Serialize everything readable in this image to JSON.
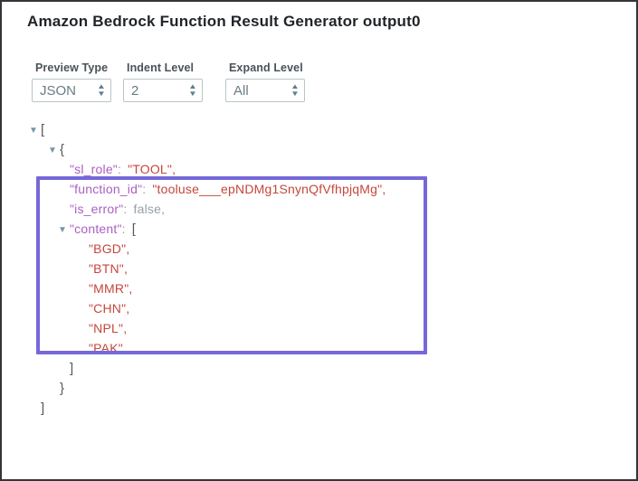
{
  "title": "Amazon Bedrock Function Result Generator output0",
  "controls": [
    {
      "id": "preview-type",
      "label": "Preview Type",
      "value": "JSON"
    },
    {
      "id": "indent-level",
      "label": "Indent Level",
      "value": "2"
    },
    {
      "id": "expand-level",
      "label": "Expand Level",
      "value": "All"
    }
  ],
  "stepper_icons": {
    "up": "▲",
    "down": "▼"
  },
  "colors": {
    "key": "#ab5fc3",
    "string": "#c5463c",
    "punct": "#97a0a5",
    "bracket": "#55595c",
    "toggle": "#7495a6",
    "arrow": "#5e7d8d",
    "selection": "#7568d8"
  },
  "json_tree": {
    "toggle_icon": "▼",
    "lines": [
      {
        "indent": 0,
        "tokens": [
          {
            "type": "toggle",
            "text": "▼"
          },
          {
            "type": "bracket",
            "text": "["
          }
        ]
      },
      {
        "indent": 1,
        "tokens": [
          {
            "type": "toggle",
            "text": "▼"
          },
          {
            "type": "bracket",
            "text": "{"
          }
        ]
      },
      {
        "indent": 2,
        "tokens": [
          {
            "type": "key",
            "text": "\"sl_role\""
          },
          {
            "type": "colon",
            "text": ":"
          },
          {
            "type": "string",
            "text": "\"TOOL\""
          },
          {
            "type": "comma-s",
            "text": ","
          }
        ]
      },
      {
        "indent": 2,
        "tokens": [
          {
            "type": "key",
            "text": "\"function_id\""
          },
          {
            "type": "colon",
            "text": ":"
          },
          {
            "type": "string",
            "text": "\"tooluse___epNDMg1SnynQfVfhpjqMg\""
          },
          {
            "type": "comma-s",
            "text": ","
          }
        ]
      },
      {
        "indent": 2,
        "tokens": [
          {
            "type": "key",
            "text": "\"is_error\""
          },
          {
            "type": "colon",
            "text": ":"
          },
          {
            "type": "literal",
            "text": "false"
          },
          {
            "type": "comma-g",
            "text": ","
          }
        ]
      },
      {
        "indent": 2,
        "tokens": [
          {
            "type": "toggle",
            "text": "▼"
          },
          {
            "type": "key",
            "text": "\"content\""
          },
          {
            "type": "colon",
            "text": ":"
          },
          {
            "type": "bracket",
            "text": "["
          }
        ]
      },
      {
        "indent": 3,
        "tokens": [
          {
            "type": "string",
            "text": "\"BGD\""
          },
          {
            "type": "comma-s",
            "text": ","
          }
        ]
      },
      {
        "indent": 3,
        "tokens": [
          {
            "type": "string",
            "text": "\"BTN\""
          },
          {
            "type": "comma-s",
            "text": ","
          }
        ]
      },
      {
        "indent": 3,
        "tokens": [
          {
            "type": "string",
            "text": "\"MMR\""
          },
          {
            "type": "comma-s",
            "text": ","
          }
        ]
      },
      {
        "indent": 3,
        "tokens": [
          {
            "type": "string",
            "text": "\"CHN\""
          },
          {
            "type": "comma-s",
            "text": ","
          }
        ]
      },
      {
        "indent": 3,
        "tokens": [
          {
            "type": "string",
            "text": "\"NPL\""
          },
          {
            "type": "comma-s",
            "text": ","
          }
        ]
      },
      {
        "indent": 3,
        "tokens": [
          {
            "type": "string",
            "text": "\"PAK\""
          }
        ]
      },
      {
        "indent": 2,
        "tokens": [
          {
            "type": "bracket",
            "text": "]"
          }
        ]
      },
      {
        "indent": 1,
        "tokens": [
          {
            "type": "bracket",
            "text": "}"
          }
        ]
      },
      {
        "indent": 0,
        "tokens": [
          {
            "type": "bracket",
            "text": "]"
          }
        ]
      }
    ]
  },
  "selection": {
    "note": "highlight box around function_id through PAK"
  }
}
